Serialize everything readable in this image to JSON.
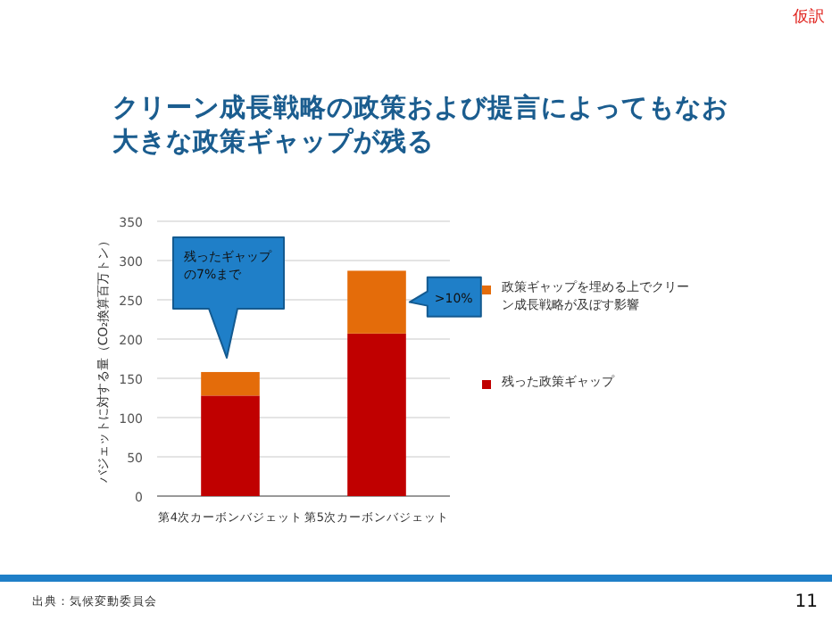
{
  "chart_data": {
    "type": "bar",
    "stacked": true,
    "title": "クリーン成長戦略の政策および提言によってもなお大きな政策ギャップが残る",
    "ylabel": "バジェットに対する量（CO₂換算百万トン）",
    "categories": [
      "第4次カーボンバジェット",
      "第5次カーボンバジェット"
    ],
    "series": [
      {
        "name": "残った政策ギャップ",
        "color": "#c00000",
        "values": [
          128,
          207
        ]
      },
      {
        "name": "政策ギャップを埋める上でクリーン成長戦略が及ぼす影響",
        "color": "#e46c0a",
        "values": [
          30,
          80
        ]
      }
    ],
    "ylim": [
      0,
      350
    ],
    "yticks": [
      0,
      50,
      100,
      150,
      200,
      250,
      300,
      350
    ],
    "grid": "y",
    "legend": "right",
    "annotations": [
      "残ったギャップの7%まで",
      ">10%",
      "仮訳",
      "出典：気候変動委員会",
      "11"
    ]
  }
}
